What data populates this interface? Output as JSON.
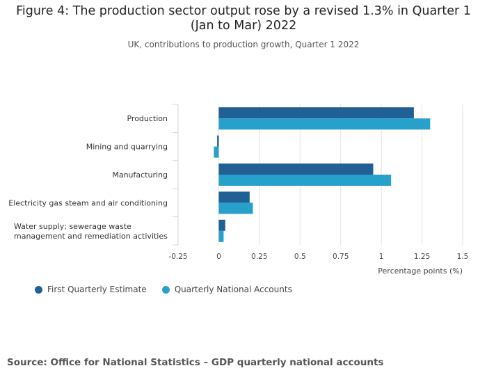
{
  "title": "Figure 4: The production sector output rose by a revised 1.3% in Quarter 1 (Jan to Mar) 2022",
  "subtitle": "UK, contributions to production growth, Quarter 1 2022",
  "source": "Source: Office for National Statistics – GDP quarterly national accounts",
  "colors": {
    "first_estimate": "#206095",
    "national_accounts": "#27a0cc"
  },
  "chart_data": {
    "type": "bar",
    "orientation": "horizontal",
    "categories": [
      [
        "Production"
      ],
      [
        "Mining and quarrying"
      ],
      [
        "Manufacturing"
      ],
      [
        "Electricity gas steam and air conditioning"
      ],
      [
        "Water supply; sewerage waste",
        "management and remediation activities"
      ]
    ],
    "series": [
      {
        "name": "First Quarterly Estimate",
        "values": [
          1.2,
          -0.01,
          0.95,
          0.19,
          0.04
        ]
      },
      {
        "name": "Quarterly National Accounts",
        "values": [
          1.3,
          -0.03,
          1.06,
          0.21,
          0.03
        ]
      }
    ],
    "xticks": [
      "-0.25",
      "0",
      "0.25",
      "0.5",
      "0.75",
      "1",
      "1.25",
      "1.5"
    ],
    "xtick_values": [
      -0.25,
      0,
      0.25,
      0.5,
      0.75,
      1,
      1.25,
      1.5
    ],
    "xlim": [
      -0.25,
      1.5
    ],
    "xlabel": "Percentage points (%)",
    "legend_position": "bottom-left"
  }
}
